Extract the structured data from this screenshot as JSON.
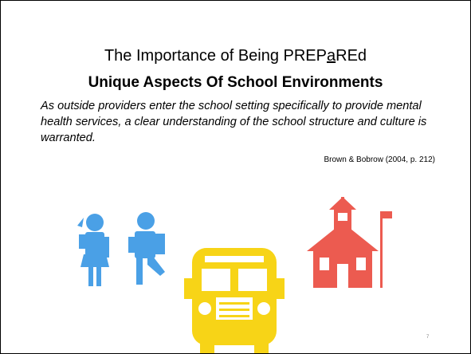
{
  "slide": {
    "title": {
      "segments": [
        "The Importance of Being PREP",
        "a",
        "REd"
      ],
      "underlined": 1
    },
    "subtitle": "Unique Aspects Of School Environments",
    "quote": "As outside providers enter the school setting specifically to provide mental health services, a clear understanding of the school structure and culture is warranted.",
    "citation": "Brown & Bobrow (2004, p. 212)",
    "page_number": "7"
  }
}
